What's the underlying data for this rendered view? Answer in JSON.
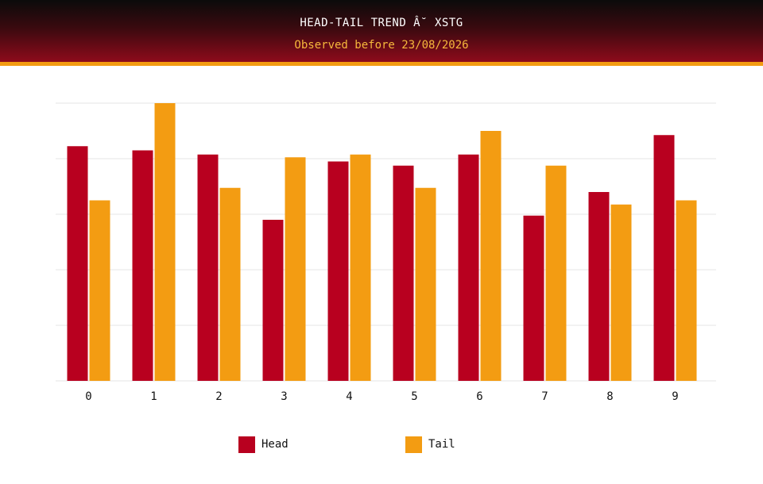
{
  "header": {
    "title": "HEAD-TAIL TREND Â˘ XSTG",
    "subtitle": "Observed before 23/08/2026"
  },
  "colors": {
    "header_dark": "#0b0b0b",
    "header_red": "#8e0b1b",
    "accent_stripe": "#f39c12",
    "subtitle": "#f6b73c",
    "head": "#b8001f",
    "tail": "#f39c12",
    "grid": "#e6e6e6"
  },
  "chart_data": {
    "type": "bar",
    "title": "HEAD-TAIL TREND Â˘ XSTG",
    "subtitle": "Observed before 23/08/2026",
    "xlabel": "",
    "ylabel": "",
    "categories": [
      "0",
      "1",
      "2",
      "3",
      "4",
      "5",
      "6",
      "7",
      "8",
      "9"
    ],
    "series": [
      {
        "name": "Head",
        "color": "#b8001f",
        "values": [
          8.45,
          8.3,
          8.15,
          5.8,
          7.9,
          7.75,
          8.15,
          5.95,
          6.8,
          8.85
        ]
      },
      {
        "name": "Tail",
        "color": "#f39c12",
        "values": [
          6.5,
          10.0,
          6.95,
          8.05,
          8.15,
          6.95,
          9.0,
          7.75,
          6.35,
          6.5
        ]
      }
    ],
    "ylim": [
      0,
      10
    ],
    "y_ticks_labeled": false,
    "grid": true,
    "legend_position": "bottom"
  },
  "legend": {
    "items": [
      {
        "label": "Head",
        "color": "#b8001f"
      },
      {
        "label": "Tail",
        "color": "#f39c12"
      }
    ]
  }
}
